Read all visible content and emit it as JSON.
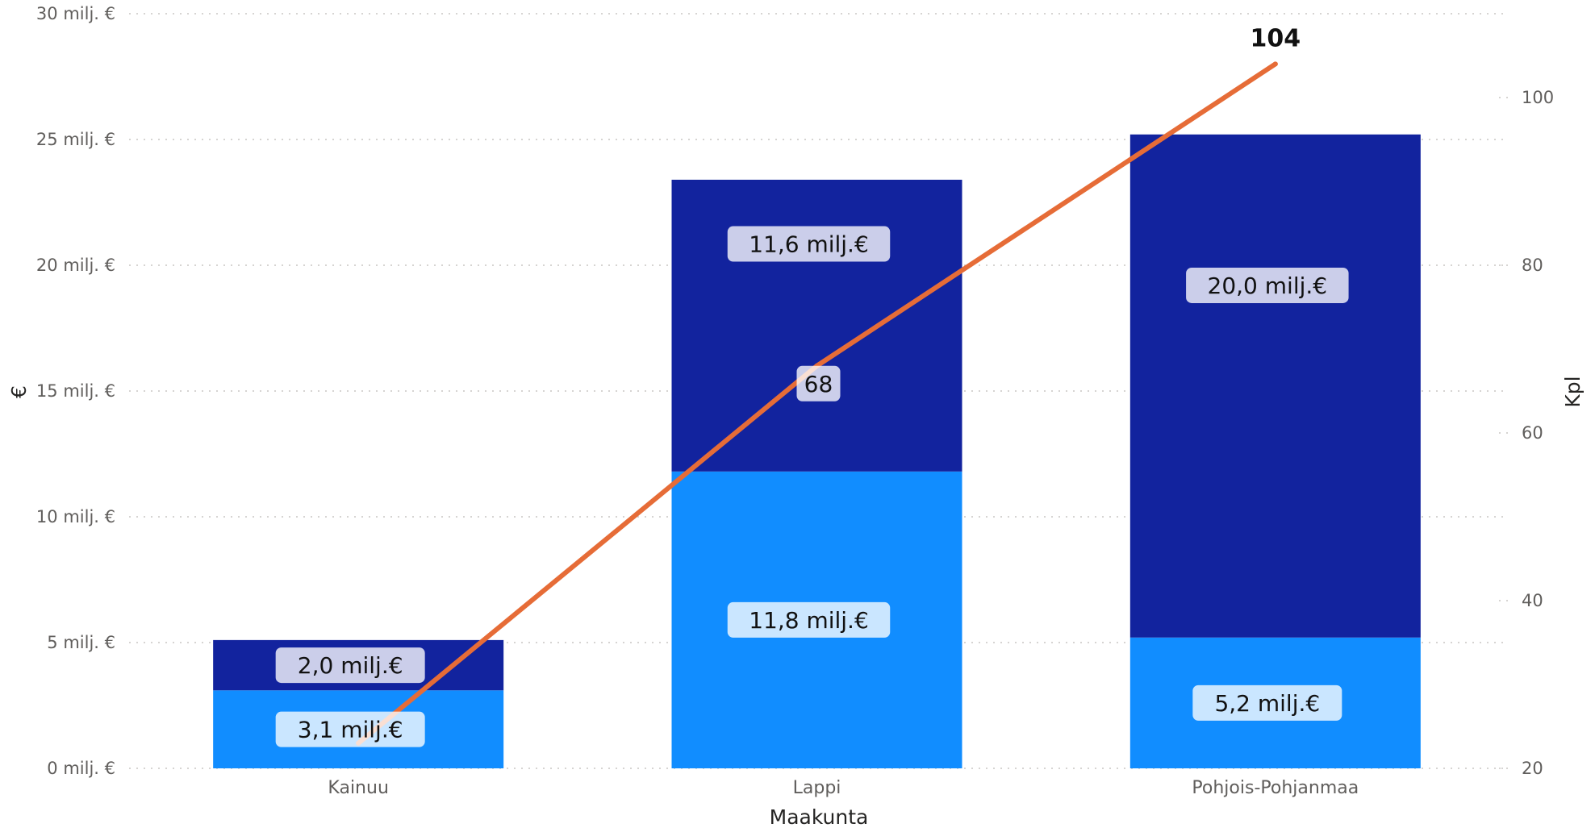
{
  "chart_data": {
    "type": "bar",
    "stacked": true,
    "xlabel": "Maakunta",
    "ylabel": "€",
    "y2label": "Kpl",
    "categories": [
      "Kainuu",
      "Lappi",
      "Pohjois-Pohjanmaa"
    ],
    "ylim": [
      0,
      30
    ],
    "y2lim": [
      20,
      110
    ],
    "yticks": [
      {
        "value": 0,
        "label": "0 milj. €"
      },
      {
        "value": 5,
        "label": "5 milj. €"
      },
      {
        "value": 10,
        "label": "10 milj. €"
      },
      {
        "value": 15,
        "label": "15 milj. €"
      },
      {
        "value": 20,
        "label": "20 milj. €"
      },
      {
        "value": 25,
        "label": "25 milj. €"
      },
      {
        "value": 30,
        "label": "30 milj. €"
      }
    ],
    "y2ticks": [
      {
        "value": 20,
        "label": "20"
      },
      {
        "value": 40,
        "label": "40"
      },
      {
        "value": 60,
        "label": "60"
      },
      {
        "value": 80,
        "label": "80"
      },
      {
        "value": 100,
        "label": "100"
      }
    ],
    "grid": true,
    "series": [
      {
        "color": "#118dff",
        "values": [
          3.1,
          11.8,
          5.2
        ],
        "labels": [
          "3,1 milj.€",
          "11,8 milj.€",
          "5,2 milj.€"
        ]
      },
      {
        "color": "#12239e",
        "values": [
          2.0,
          11.6,
          20.0
        ],
        "labels": [
          "2,0 milj.€",
          "11,6 milj.€",
          "20,0 milj.€"
        ]
      }
    ],
    "line_series": {
      "color": "#e66c37",
      "axis": "secondary",
      "values": [
        23,
        68,
        104
      ],
      "labels": [
        "",
        "68",
        "104"
      ]
    }
  }
}
